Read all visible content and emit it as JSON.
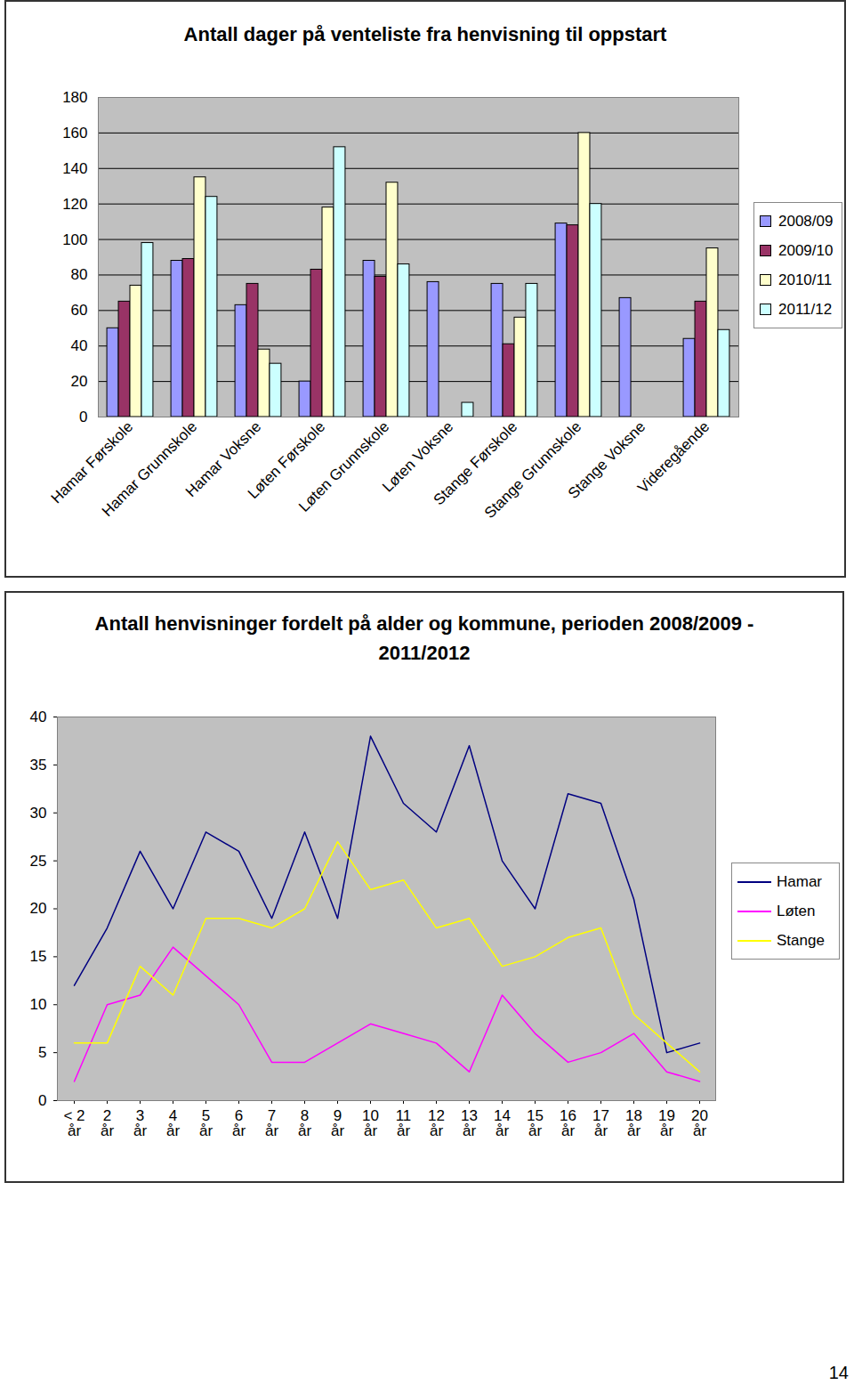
{
  "chart_data": [
    {
      "type": "bar",
      "title": "Antall dager på venteliste fra henvisning til oppstart",
      "categories": [
        "Hamar Førskole",
        "Hamar Grunnskole",
        "Hamar Voksne",
        "Løten Førskole",
        "Løten Grunnskole",
        "Løten Voksne",
        "Stange Førskole",
        "Stange Grunnskole",
        "Stange Voksne",
        "Videregående"
      ],
      "series": [
        {
          "name": "2008/09",
          "color": "#9999FF",
          "values": [
            50,
            88,
            63,
            20,
            88,
            76,
            75,
            109,
            67,
            44
          ]
        },
        {
          "name": "2009/10",
          "color": "#993366",
          "values": [
            65,
            89,
            75,
            83,
            79,
            null,
            41,
            108,
            null,
            65
          ]
        },
        {
          "name": "2010/11",
          "color": "#FFFFCC",
          "values": [
            74,
            135,
            38,
            118,
            132,
            null,
            56,
            160,
            null,
            95
          ]
        },
        {
          "name": "2011/12",
          "color": "#CCFFFF",
          "values": [
            98,
            124,
            30,
            152,
            86,
            8,
            75,
            120,
            null,
            49
          ]
        }
      ],
      "ylim": [
        0,
        180
      ],
      "yticks": [
        0,
        20,
        40,
        60,
        80,
        100,
        120,
        140,
        160,
        180
      ],
      "grid": true,
      "legend": "right"
    },
    {
      "type": "line",
      "title": "Antall henvisninger fordelt på alder og kommune, perioden 2008/2009 - 2011/2012",
      "categories": [
        "< 2 år",
        "2 år",
        "3 år",
        "4 år",
        "5 år",
        "6 år",
        "7 år",
        "8 år",
        "9 år",
        "10 år",
        "11 år",
        "12 år",
        "13 år",
        "14 år",
        "15 år",
        "16 år",
        "17 år",
        "18 år",
        "19 år",
        "20 år"
      ],
      "series": [
        {
          "name": "Hamar",
          "color": "#000080",
          "values": [
            12,
            18,
            26,
            20,
            28,
            26,
            19,
            28,
            19,
            38,
            31,
            28,
            37,
            25,
            20,
            32,
            31,
            21,
            5,
            6
          ]
        },
        {
          "name": "Løten",
          "color": "#FF00FF",
          "values": [
            2,
            10,
            11,
            16,
            13,
            10,
            4,
            4,
            6,
            8,
            7,
            6,
            3,
            11,
            7,
            4,
            5,
            7,
            3,
            2
          ]
        },
        {
          "name": "Stange",
          "color": "#FFFF00",
          "values": [
            6,
            6,
            14,
            11,
            19,
            19,
            18,
            20,
            27,
            22,
            23,
            18,
            19,
            14,
            15,
            17,
            18,
            9,
            6,
            3
          ]
        }
      ],
      "ylim": [
        0,
        40
      ],
      "yticks": [
        0,
        5,
        10,
        15,
        20,
        25,
        30,
        35,
        40
      ],
      "grid": false,
      "legend": "right"
    }
  ],
  "page_number": "14"
}
